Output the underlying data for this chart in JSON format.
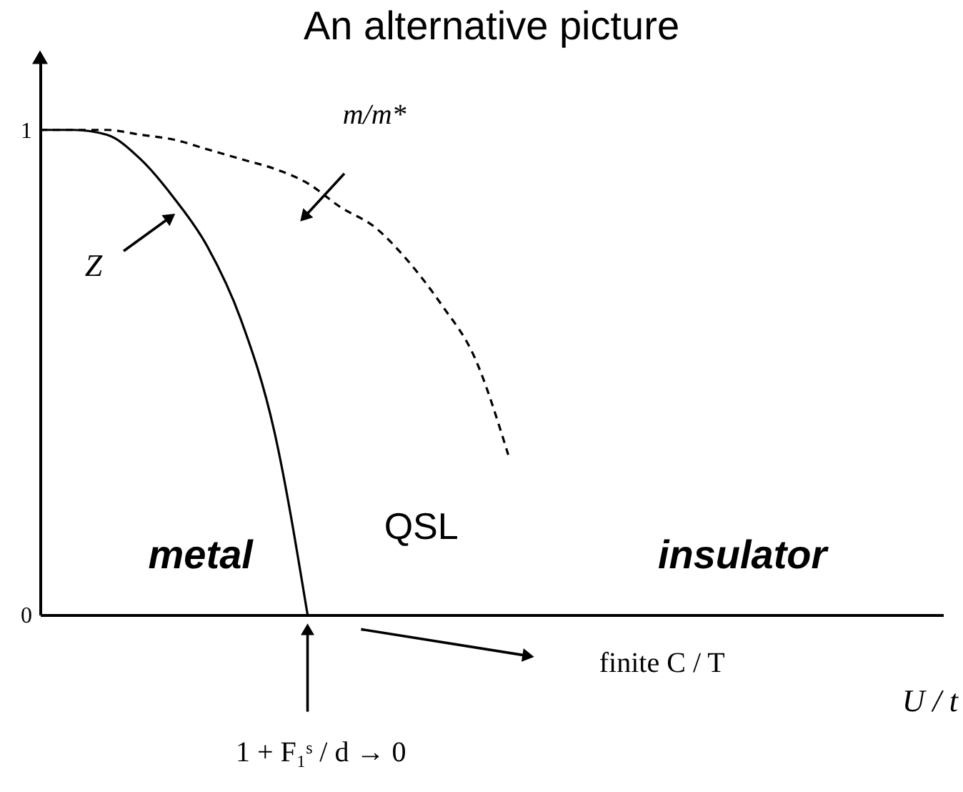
{
  "chart_data": {
    "type": "line",
    "title": "An alternative picture",
    "xlabel": "U / t",
    "categories": [
      null,
      null,
      null,
      null,
      null,
      null,
      null,
      null,
      null,
      null,
      null,
      null,
      null,
      null,
      null,
      null,
      null,
      null,
      null,
      null,
      null,
      null,
      null,
      null,
      null,
      null,
      null,
      null
    ],
    "series": [
      {
        "name": "Z",
        "color": "#000000",
        "line_style": "solid",
        "values": [
          1.0,
          1.0,
          0.99,
          0.94,
          0.86,
          0.76,
          0.61,
          0.38,
          0.0,
          null,
          null,
          null,
          null,
          null,
          null,
          null,
          null,
          null,
          null,
          null,
          null,
          null,
          null,
          null,
          null,
          null,
          null,
          null
        ]
      },
      {
        "name": "m/m*",
        "color": "#000000",
        "line_style": "dashed",
        "values": [
          1.0,
          1.0,
          1.0,
          0.99,
          0.98,
          0.96,
          0.94,
          0.92,
          0.89,
          0.84,
          0.8,
          0.73,
          0.64,
          0.53,
          0.33,
          null,
          null,
          null,
          null,
          null,
          null,
          null,
          null,
          null,
          null,
          null,
          null,
          null
        ]
      }
    ],
    "ylim": [
      0,
      1.15
    ],
    "yticks": [
      0,
      1
    ],
    "grid": false,
    "marker": "none",
    "annotations": [
      "metal",
      "QSL",
      "insulator",
      "finite C / T",
      "1 + F₁ˢ / d → 0"
    ]
  }
}
